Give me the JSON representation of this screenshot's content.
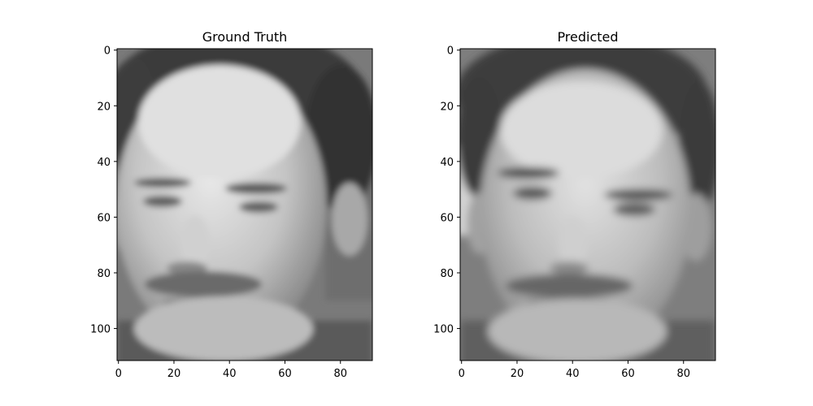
{
  "figure": {
    "panels": [
      {
        "title": "Ground Truth",
        "variant": "ground_truth"
      },
      {
        "title": "Predicted",
        "variant": "predicted"
      }
    ]
  },
  "chart_data": [
    {
      "type": "heatmap",
      "title": "Ground Truth",
      "image": "grayscale face photo (man with mustache, short dark hair)",
      "xlim": [
        -0.5,
        91.5
      ],
      "ylim": [
        111.5,
        -0.5
      ],
      "xticks": [
        0,
        20,
        40,
        60,
        80
      ],
      "yticks": [
        0,
        20,
        40,
        60,
        80,
        100
      ],
      "xlabel": "",
      "ylabel": "",
      "colormap": "gray"
    },
    {
      "type": "heatmap",
      "title": "Predicted",
      "image": "grayscale face photo (reconstruction, smoother, mustache, short dark hair)",
      "xlim": [
        -0.5,
        91.5
      ],
      "ylim": [
        111.5,
        -0.5
      ],
      "xticks": [
        0,
        20,
        40,
        60,
        80
      ],
      "yticks": [
        0,
        20,
        40,
        60,
        80,
        100
      ],
      "xlabel": "",
      "ylabel": "",
      "colormap": "gray"
    }
  ]
}
